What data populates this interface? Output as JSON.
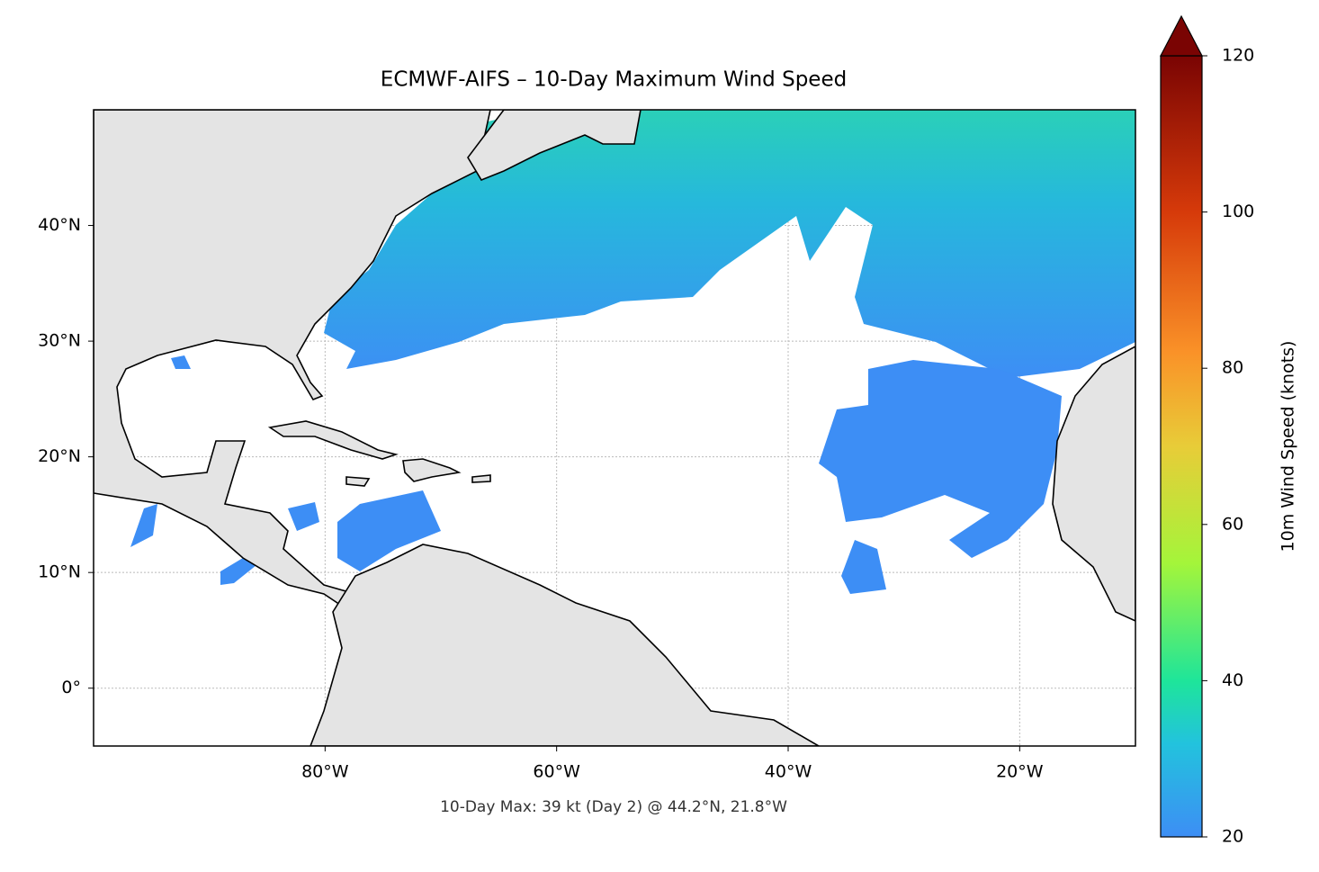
{
  "chart_data": {
    "type": "map",
    "title": "ECMWF-AIFS – 10-Day Maximum Wind Speed",
    "annotation": "10-Day Max: 39 kt (Day 2) @ 44.2°N, 21.8°W",
    "xlim": [
      -100,
      -10
    ],
    "ylim": [
      -5,
      50
    ],
    "xticks": [
      {
        "value": -80,
        "label": "80°W"
      },
      {
        "value": -60,
        "label": "60°W"
      },
      {
        "value": -40,
        "label": "40°W"
      },
      {
        "value": -20,
        "label": "20°W"
      }
    ],
    "yticks": [
      {
        "value": 0,
        "label": "0°"
      },
      {
        "value": 10,
        "label": "10°N"
      },
      {
        "value": 20,
        "label": "20°N"
      },
      {
        "value": 30,
        "label": "30°N"
      },
      {
        "value": 40,
        "label": "40°N"
      }
    ],
    "grid": true,
    "colorbar": {
      "label": "10m Wind Speed (knots)",
      "lim": [
        20,
        120
      ],
      "ticks": [
        20,
        40,
        60,
        80,
        100,
        120
      ],
      "extend": "max"
    }
  }
}
